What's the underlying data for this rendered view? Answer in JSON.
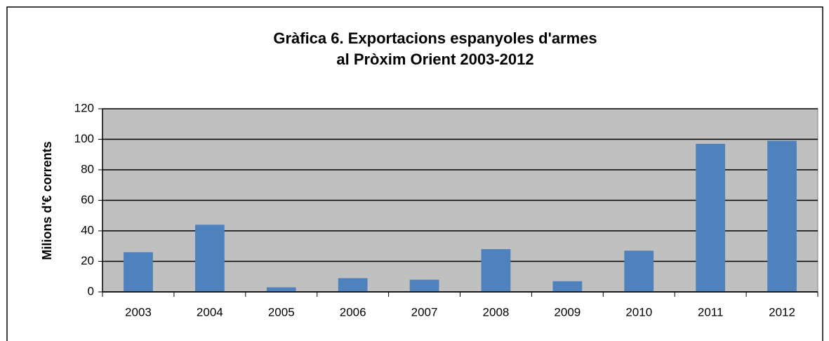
{
  "chart_data": {
    "type": "bar",
    "title": [
      "Gràfica 6. Exportacions espanyoles d'armes",
      "al Pròxim Orient 2003-2012"
    ],
    "y_label": "Milions d'€ corrents",
    "categories": [
      "2003",
      "2004",
      "2005",
      "2006",
      "2007",
      "2008",
      "2009",
      "2010",
      "2011",
      "2012"
    ],
    "values": [
      26,
      44,
      3,
      9,
      8,
      28,
      7,
      27,
      97,
      99
    ],
    "color": "#4f81bd",
    "ylim": [
      0,
      120
    ],
    "yticks": [
      0,
      20,
      40,
      60,
      80,
      100,
      120
    ],
    "grid": true
  }
}
